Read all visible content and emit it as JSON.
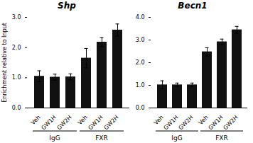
{
  "chart_data": [
    {
      "type": "bar",
      "title": "Shp",
      "categories": [
        "Veh",
        "GW1H",
        "GW2H",
        "Veh",
        "GW1H",
        "GW2H"
      ],
      "values": [
        1.05,
        1.02,
        1.03,
        1.65,
        2.18,
        2.58
      ],
      "errors": [
        0.18,
        0.1,
        0.1,
        0.32,
        0.15,
        0.2
      ],
      "color": "#111111",
      "ylim": [
        0,
        3
      ],
      "yticks": [
        0,
        1,
        2,
        3
      ],
      "ylabel": "Enrichment relative to Input",
      "group_labels": [
        "IgG",
        "FXR"
      ]
    },
    {
      "type": "bar",
      "title": "Becn1",
      "categories": [
        "Veh",
        "GW1H",
        "GW2H",
        "Veh",
        "GW1H",
        "GW2H"
      ],
      "values": [
        1.02,
        1.02,
        1.02,
        2.48,
        2.92,
        3.45
      ],
      "errors": [
        0.18,
        0.08,
        0.08,
        0.18,
        0.12,
        0.15
      ],
      "color": "#111111",
      "ylim": [
        0,
        4
      ],
      "yticks": [
        0,
        1,
        2,
        3,
        4
      ],
      "group_labels": [
        "IgG",
        "FXR"
      ]
    }
  ]
}
